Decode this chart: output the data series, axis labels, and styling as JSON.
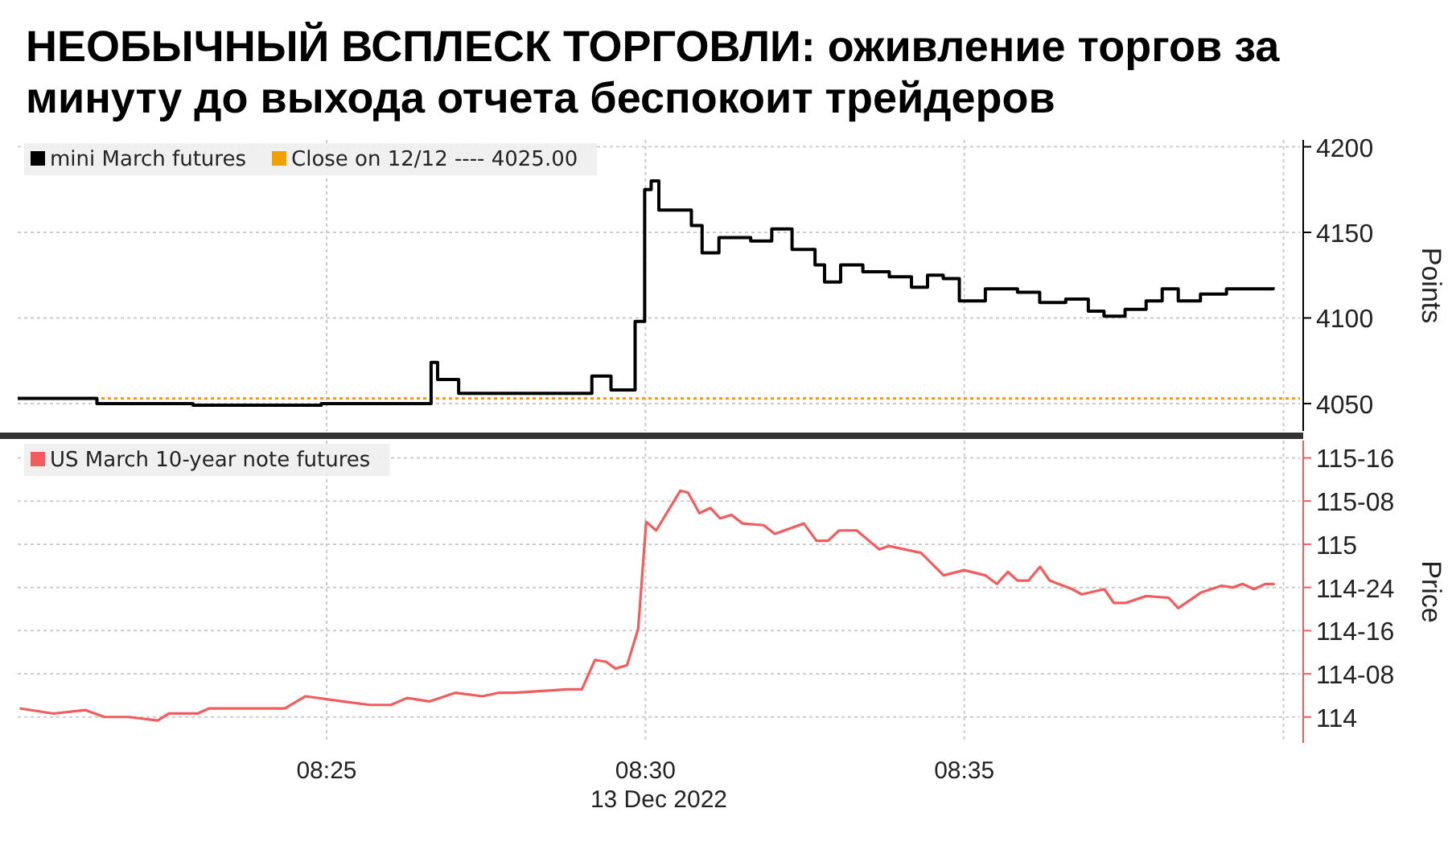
{
  "chart_data": [
    {
      "type": "step",
      "title": "НЕОБЫЧНЫЙ ВСПЛЕСК ТОРГОВЛИ: оживление торгов за минуту до выхода отчета беспокоит трейдеров",
      "ylabel": "Points",
      "x": [
        8.336,
        8.3567,
        8.3818,
        8.4153,
        8.444,
        8.4457,
        8.4512,
        8.47,
        8.486,
        8.491,
        8.4973,
        8.4998,
        8.5015,
        8.5035,
        8.512,
        8.5148,
        8.5192,
        8.5275,
        8.533,
        8.5383,
        8.5443,
        8.5468,
        8.551,
        8.5568,
        8.5637,
        8.5695,
        8.5737,
        8.5778,
        8.582,
        8.5888,
        8.5972,
        8.603,
        8.6098,
        8.6157,
        8.6198,
        8.6253,
        8.6308,
        8.635,
        8.6392,
        8.645,
        8.6518,
        8.6588,
        8.664
      ],
      "series": [
        {
          "name": "mini March futures",
          "color": "#000000",
          "values": [
            4053,
            4050,
            4049,
            4050,
            4074,
            4064,
            4056,
            4056,
            4066,
            4058,
            4098,
            4175,
            4180,
            4163,
            4154,
            4138,
            4147,
            4145,
            4152,
            4140,
            4131,
            4121,
            4131,
            4127,
            4124,
            4118,
            4125,
            4123,
            4110,
            4117,
            4115,
            4109,
            4111,
            4104,
            4101,
            4105,
            4110,
            4117,
            4110,
            4114,
            4117,
            4117,
            4118
          ]
        }
      ],
      "xlim": [
        8.336,
        8.671
      ],
      "xticks": [
        {
          "value": 8.4167,
          "label": null
        },
        {
          "value": 8.5,
          "label": null
        },
        {
          "value": 8.5833,
          "label": null
        },
        {
          "value": 8.6667,
          "label": null
        }
      ],
      "ylim": [
        4034,
        4204
      ],
      "yticks": [
        4050,
        4100,
        4150,
        4200
      ],
      "ref_lines": [
        {
          "axis": "y",
          "value": 4053,
          "label": "Close on 12/12 ---- 4025.00",
          "color": "#f0a000",
          "line_style": "dotted"
        }
      ],
      "grid": true,
      "legend": "top left",
      "tick_labels": "y"
    },
    {
      "type": "line",
      "ylabel": "Price",
      "xlabel": "13 Dec 2022",
      "x": [
        8.3365,
        8.3453,
        8.3537,
        8.3587,
        8.365,
        8.3726,
        8.3755,
        8.383,
        8.386,
        8.3915,
        8.4058,
        8.4112,
        8.4209,
        8.428,
        8.4335,
        8.4377,
        8.4435,
        8.4503,
        8.4574,
        8.4616,
        8.4658,
        8.4796,
        8.4834,
        8.4868,
        8.4897,
        8.4922,
        8.4952,
        8.4981,
        8.5002,
        8.5028,
        8.5091,
        8.5111,
        8.5141,
        8.517,
        8.5195,
        8.5225,
        8.5254,
        8.5309,
        8.5338,
        8.5414,
        8.5447,
        8.5477,
        8.5506,
        8.5552,
        8.5611,
        8.5636,
        8.572,
        8.5779,
        8.5833,
        8.5888,
        8.5918,
        8.5947,
        8.5972,
        8.6001,
        8.6031,
        8.6056,
        8.6115,
        8.614,
        8.6199,
        8.6224,
        8.6254,
        8.6308,
        8.6367,
        8.6392,
        8.6451,
        8.6505,
        8.6535,
        8.656,
        8.659,
        8.6619,
        8.6644
      ],
      "series": [
        {
          "name": "US March 10-year note futures",
          "color": "#f25c5c",
          "values": [
            114.05,
            114.02,
            114.04,
            114.0,
            114.0,
            113.98,
            114.02,
            114.02,
            114.05,
            114.05,
            114.05,
            114.12,
            114.09,
            114.07,
            114.07,
            114.11,
            114.09,
            114.14,
            114.12,
            114.14,
            114.14,
            114.16,
            114.16,
            114.33,
            114.32,
            114.28,
            114.3,
            114.51,
            115.13,
            115.08,
            115.31,
            115.3,
            115.18,
            115.21,
            115.15,
            115.17,
            115.12,
            115.11,
            115.06,
            115.12,
            115.02,
            115.02,
            115.08,
            115.08,
            114.97,
            114.99,
            114.95,
            114.82,
            114.85,
            114.82,
            114.77,
            114.84,
            114.79,
            114.79,
            114.87,
            114.79,
            114.74,
            114.71,
            114.74,
            114.66,
            114.66,
            114.7,
            114.69,
            114.63,
            114.72,
            114.76,
            114.75,
            114.77,
            114.74,
            114.77,
            114.77
          ]
        }
      ],
      "xlim": [
        8.336,
        8.671
      ],
      "xticks": [
        {
          "value": 8.4167,
          "label": "08:25"
        },
        {
          "value": 8.5,
          "label": "08:30"
        },
        {
          "value": 8.5833,
          "label": "08:35"
        },
        {
          "value": 8.6667,
          "label": null
        }
      ],
      "ylim": [
        113.85,
        115.6
      ],
      "yticks": [
        114,
        {
          "value": 114.25,
          "label": "114-08"
        },
        {
          "value": 114.5,
          "label": "114-16"
        },
        {
          "value": 114.75,
          "label": "114-24"
        },
        115,
        {
          "value": 115.25,
          "label": "115-08"
        },
        {
          "value": 115.5,
          "label": "115-16"
        }
      ],
      "grid": true,
      "legend": "top left"
    }
  ]
}
